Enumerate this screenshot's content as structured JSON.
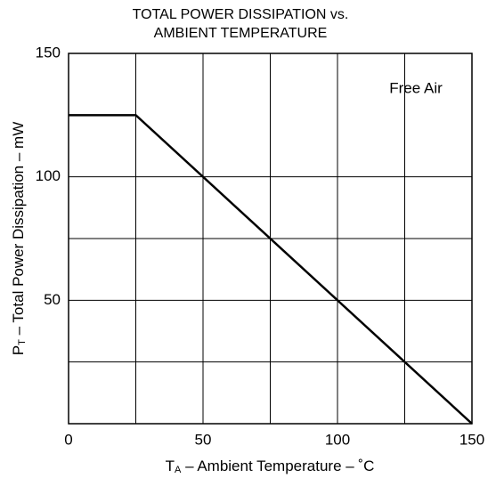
{
  "chart_data": {
    "type": "line",
    "title": [
      "TOTAL POWER DISSIPATION vs.",
      "AMBIENT TEMPERATURE"
    ],
    "xlabel": {
      "main": "T",
      "sub": "A",
      "rest": " – Ambient Temperature – ˚C"
    },
    "ylabel": {
      "main": "P",
      "sub": "T",
      "rest": " – Total Power Dissipation – mW"
    },
    "annotation": "Free Air",
    "x": [
      0,
      25,
      150
    ],
    "series": [
      {
        "color": "#000000",
        "values": [
          125,
          125,
          0
        ]
      }
    ],
    "xlim": [
      0,
      150
    ],
    "xticks": [
      0,
      50,
      100,
      150
    ],
    "xminor_ticks": [
      25,
      75,
      125
    ],
    "ylim": [
      0,
      150
    ],
    "yticks": [
      50,
      100,
      150
    ],
    "yminor_ticks": [
      25,
      75
    ],
    "grid": true
  }
}
